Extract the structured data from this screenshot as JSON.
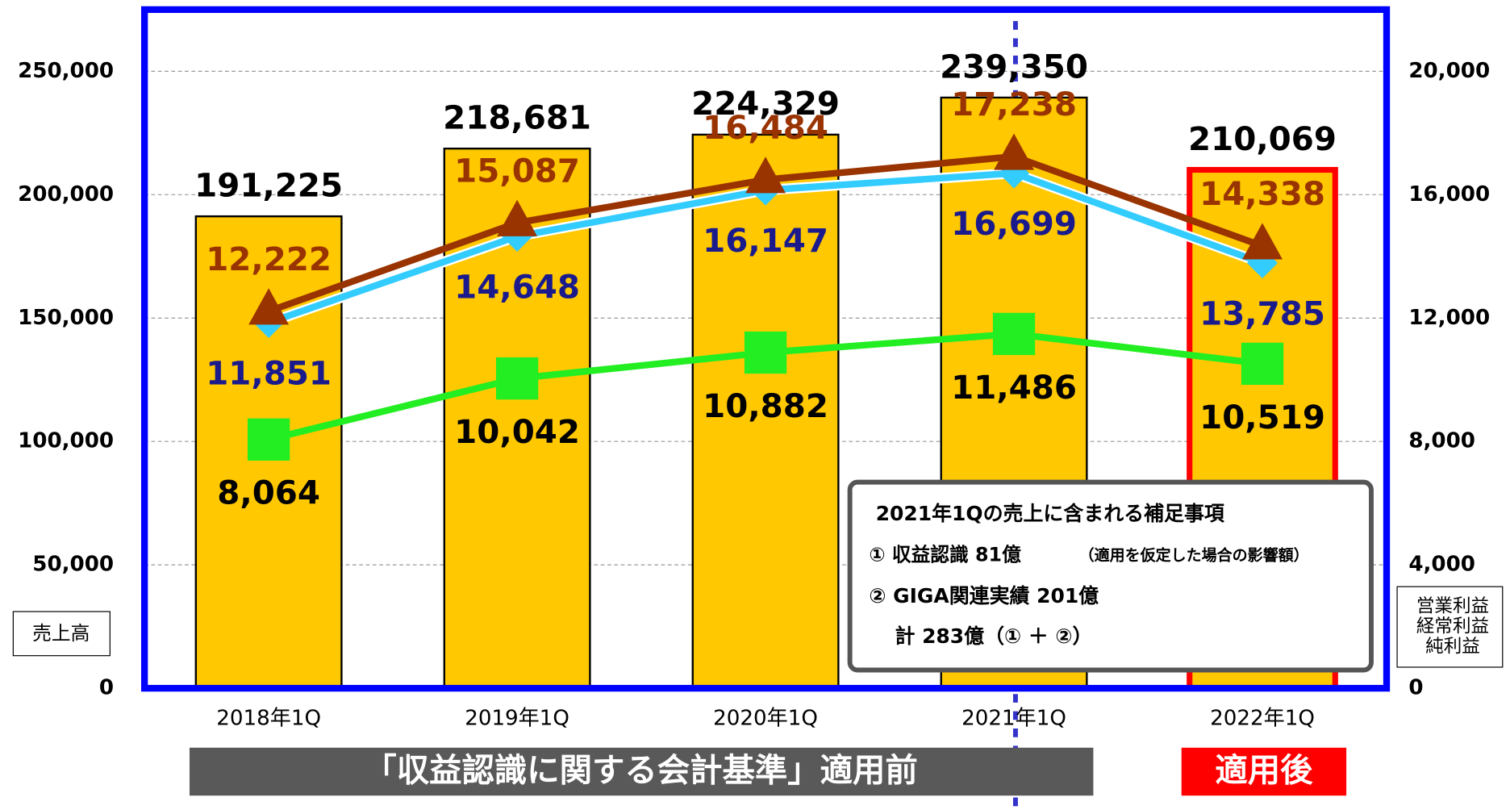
{
  "chart_data": {
    "type": "bar",
    "categories": [
      "2018年1Q",
      "2019年1Q",
      "2020年1Q",
      "2021年1Q",
      "2022年1Q"
    ],
    "series": [
      {
        "name": "売上高",
        "type": "bar",
        "color": "#FFC800",
        "values": [
          191225,
          218681,
          224329,
          239350,
          210069
        ],
        "value_labels": [
          "191,225",
          "218,681",
          "224,329",
          "239,350",
          "210,069"
        ]
      },
      {
        "name": "営業利益",
        "type": "line",
        "axis": "y2",
        "color": "#33CCFF",
        "label_color": "#1A1A8C",
        "marker": "diamond",
        "values": [
          11851,
          14648,
          16147,
          16699,
          13785
        ],
        "value_labels": [
          "11,851",
          "14,648",
          "16,147",
          "16,699",
          "13,785"
        ]
      },
      {
        "name": "経常利益",
        "type": "line",
        "axis": "y2",
        "color": "#993300",
        "label_color": "#993300",
        "marker": "triangle",
        "values": [
          12222,
          15087,
          16484,
          17238,
          14338
        ],
        "value_labels": [
          "12,222",
          "15,087",
          "16,484",
          "17,238",
          "14,338"
        ]
      },
      {
        "name": "純利益",
        "type": "line",
        "axis": "y2",
        "color": "#22EE22",
        "label_color": "#000000",
        "marker": "square",
        "values": [
          8064,
          10042,
          10882,
          11486,
          10519
        ],
        "value_labels": [
          "8,064",
          "10,042",
          "10,882",
          "11,486",
          "10,519"
        ]
      }
    ],
    "ylim": [
      0,
      275000
    ],
    "yticks": [
      0,
      {
        "value": 50000,
        "label": "50,000"
      },
      {
        "value": 100000,
        "label": "100,000"
      },
      {
        "value": 150000,
        "label": "150,000"
      },
      {
        "value": 200000,
        "label": "200,000"
      },
      {
        "value": 250000,
        "label": "250,000"
      }
    ],
    "y2lim": [
      0,
      22000
    ],
    "y2ticks": [
      0,
      {
        "value": 4000,
        "label": "4,000"
      },
      {
        "value": 8000,
        "label": "8,000"
      },
      {
        "value": 12000,
        "label": "12,000"
      },
      {
        "value": 16000,
        "label": "16,000"
      },
      {
        "value": 20000,
        "label": "20,000"
      }
    ],
    "grid": true,
    "highlight_index": 4,
    "divider_after": 3,
    "annotation": {
      "title": "2021年1Qの売上に含まれる補足事項",
      "lines": [
        "① 収益認識 81億",
        "（適用を仮定した場合の影響額）",
        "② GIGA関連実績 201億",
        "計 283億（① ＋ ②）"
      ]
    },
    "phase_labels": [
      "「収益認識に関する会計基準」適用前",
      "適用後"
    ]
  }
}
